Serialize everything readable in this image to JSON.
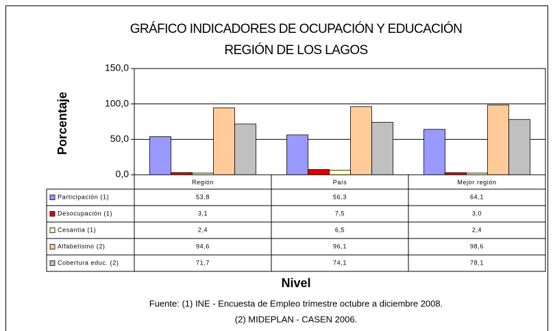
{
  "chart_data": {
    "type": "bar",
    "title": "GRÁFICO INDICADORES DE OCUPACIÓN Y EDUCACIÓN",
    "subtitle": "REGIÓN DE LOS LAGOS",
    "y_label": "Porcentaje",
    "x_label": "Nivel",
    "notes": [
      "Fuente: (1) INE - Encuesta de Empleo trimestre octubre a diciembre 2008.",
      "(2) MIDEPLAN - CASEN 2006."
    ],
    "categories": [
      "Región",
      "País",
      "Mejor región"
    ],
    "series": [
      {
        "name": "Participación (1)",
        "color": "#9999ff",
        "values": [
          53.8,
          56.3,
          64.1
        ],
        "value_labels": [
          "53,8",
          "56,3",
          "64,1"
        ]
      },
      {
        "name": "Desocupación (1)",
        "color": "#e00000",
        "values": [
          3.1,
          7.5,
          3.0
        ],
        "value_labels": [
          "3,1",
          "7,5",
          "3,0"
        ]
      },
      {
        "name": "Cesantia (1)",
        "color": "#ffffc0",
        "values": [
          2.4,
          6.5,
          2.4
        ],
        "value_labels": [
          "2,4",
          "6,5",
          "2,4"
        ]
      },
      {
        "name": "Alfabetismo (2)",
        "color": "#ffcc99",
        "values": [
          94.6,
          96.1,
          98.6
        ],
        "value_labels": [
          "94,6",
          "96,1",
          "98,6"
        ]
      },
      {
        "name": "Cobertura educ. (2)",
        "color": "#c0c0c0",
        "values": [
          71.7,
          74.1,
          78.1
        ],
        "value_labels": [
          "71,7",
          "74,1",
          "78,1"
        ]
      }
    ],
    "ylim": [
      0,
      150
    ],
    "yticks": [
      {
        "value": 0,
        "label": "0,0"
      },
      {
        "value": 50,
        "label": "50,0"
      },
      {
        "value": 100,
        "label": "100,0"
      },
      {
        "value": 150,
        "label": "150,0"
      }
    ],
    "grid": true
  }
}
